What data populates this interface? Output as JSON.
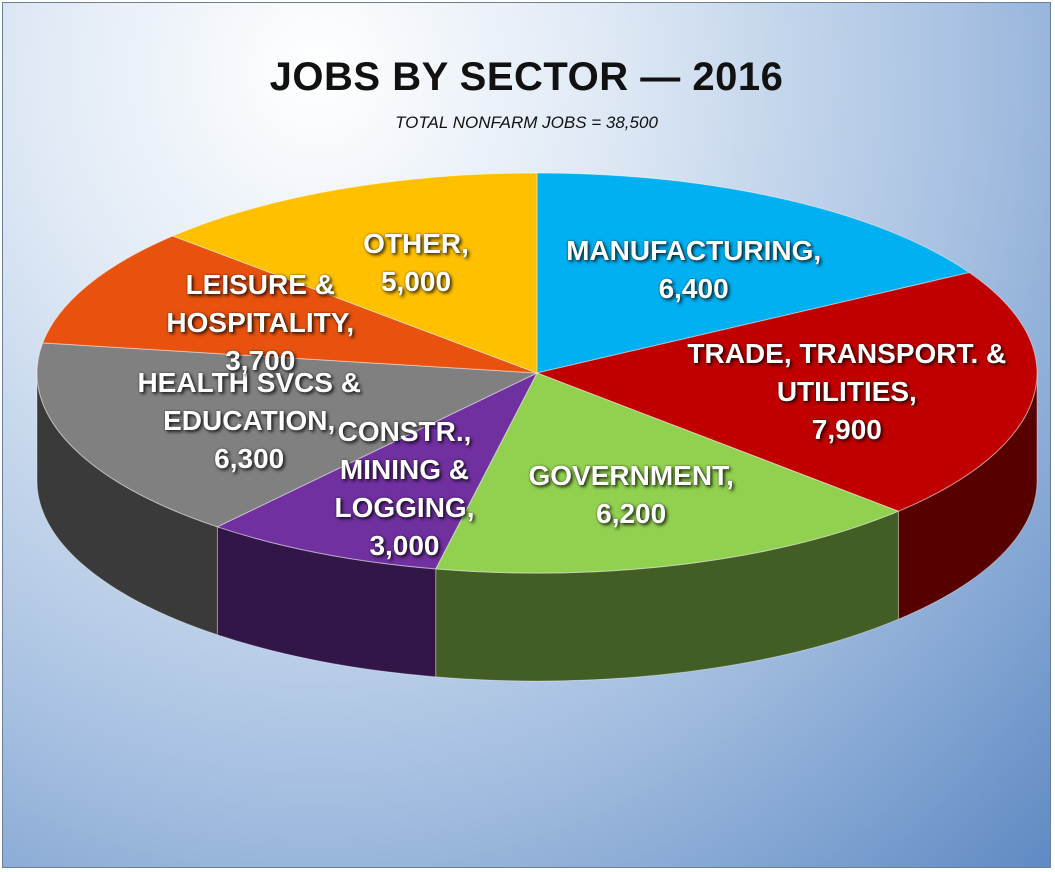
{
  "chart_data": {
    "type": "pie",
    "title": "JOBS BY SECTOR — 2016",
    "subtitle": "TOTAL NONFARM JOBS = 38,500",
    "three_d": true,
    "legend": "none",
    "slices": [
      {
        "label_lines": [
          "MANUFACTURING,",
          "6,400"
        ],
        "name": "MANUFACTURING",
        "value": 6400,
        "color": "#00b0f0"
      },
      {
        "label_lines": [
          "TRADE, TRANSPORT. &",
          "UTILITIES,",
          "7,900"
        ],
        "name": "TRADE, TRANSPORT. & UTILITIES",
        "value": 7900,
        "color": "#c00000"
      },
      {
        "label_lines": [
          "GOVERNMENT,",
          "6,200"
        ],
        "name": "GOVERNMENT",
        "value": 6200,
        "color": "#92d050"
      },
      {
        "label_lines": [
          "CONSTR.,",
          "MINING &",
          "LOGGING,",
          "3,000"
        ],
        "name": "CONSTR., MINING & LOGGING",
        "value": 3000,
        "color": "#7030a0"
      },
      {
        "label_lines": [
          "HEALTH SVCS &",
          "EDUCATION,",
          "6,300"
        ],
        "name": "HEALTH SVCS & EDUCATION",
        "value": 6300,
        "color": "#808080"
      },
      {
        "label_lines": [
          "LEISURE &",
          "HOSPITALITY,",
          "3,700"
        ],
        "name": "LEISURE & HOSPITALITY",
        "value": 3700,
        "color": "#e8520e"
      },
      {
        "label_lines": [
          "OTHER,",
          "5,000"
        ],
        "name": "OTHER",
        "value": 5000,
        "color": "#ffc000"
      }
    ]
  }
}
